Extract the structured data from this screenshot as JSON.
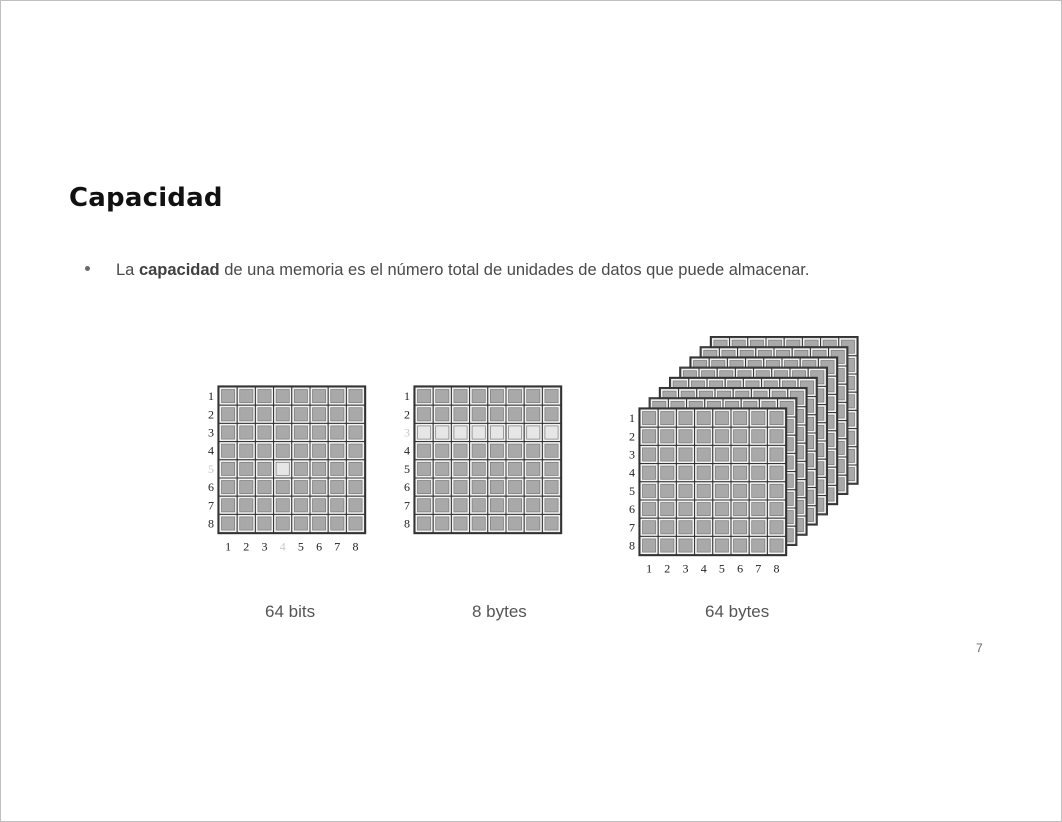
{
  "slide": {
    "title": "Capacidad",
    "bullet": {
      "prefix": "La ",
      "bold": "capacidad",
      "suffix": " de una memoria es el número total de unidades de datos que puede almacenar."
    },
    "page_number": "7"
  },
  "figures": [
    {
      "caption": "64 bits",
      "rows": 8,
      "cols": 8,
      "row_labels": [
        "1",
        "2",
        "3",
        "4",
        "5",
        "6",
        "7",
        "8"
      ],
      "col_labels": [
        "1",
        "2",
        "3",
        "4",
        "5",
        "6",
        "7",
        "8"
      ],
      "highlight": {
        "row": 5,
        "col": 4
      }
    },
    {
      "caption": "8 bytes",
      "rows": 8,
      "cols": 8,
      "row_labels": [
        "1",
        "2",
        "3",
        "4",
        "5",
        "6",
        "7",
        "8"
      ],
      "highlight_row": 3
    },
    {
      "caption": "64 bytes",
      "rows": 8,
      "cols": 8,
      "layers": 8,
      "row_labels": [
        "1",
        "2",
        "3",
        "4",
        "5",
        "6",
        "7",
        "8"
      ],
      "col_labels": [
        "1",
        "2",
        "3",
        "4",
        "5",
        "6",
        "7",
        "8"
      ]
    }
  ],
  "colors": {
    "cell_fill": "#a9a9a9",
    "cell_highlight": "#e6e6e6",
    "grid_line": "#333333",
    "label_dim": "#c8c8c8"
  }
}
